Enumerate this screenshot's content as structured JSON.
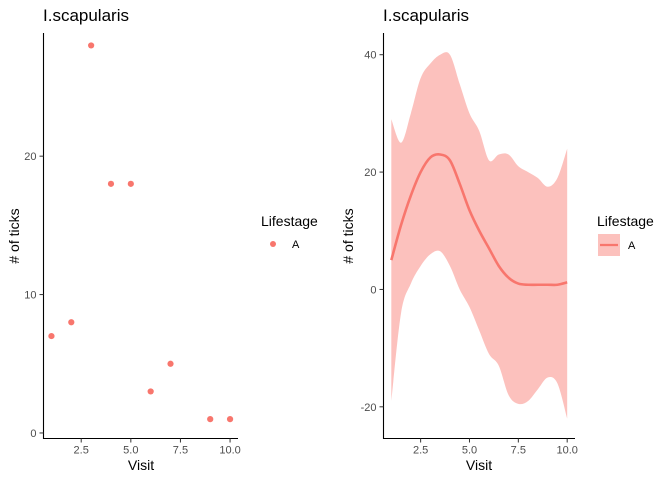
{
  "chart_data": [
    {
      "type": "scatter",
      "title": "I.scapularis",
      "xlabel": "Visit",
      "ylabel": "# of ticks",
      "xlim": [
        0.6,
        10.4
      ],
      "ylim": [
        -0.4,
        28.9
      ],
      "xticks": [
        2.5,
        5.0,
        7.5,
        10.0
      ],
      "xtick_labels": [
        "2.5",
        "5.0",
        "7.5",
        "10.0"
      ],
      "yticks": [
        0,
        10,
        20
      ],
      "ytick_labels": [
        "0",
        "10",
        "20"
      ],
      "grid": false,
      "legend": {
        "title": "Lifestage",
        "position": "right",
        "entries": [
          "A"
        ]
      },
      "series": [
        {
          "name": "A",
          "color": "#F8766D",
          "points": [
            [
              1,
              7
            ],
            [
              2,
              8
            ],
            [
              3,
              28
            ],
            [
              4,
              18
            ],
            [
              5,
              18
            ],
            [
              6,
              3
            ],
            [
              7,
              5
            ],
            [
              9,
              1
            ],
            [
              10,
              1
            ]
          ]
        }
      ]
    },
    {
      "type": "line",
      "title": "I.scapularis",
      "xlabel": "Visit",
      "ylabel": "# of ticks",
      "xlim": [
        0.6,
        10.4
      ],
      "ylim": [
        -25.4,
        43.7
      ],
      "xticks": [
        2.5,
        5.0,
        7.5,
        10.0
      ],
      "xtick_labels": [
        "2.5",
        "5.0",
        "7.5",
        "10.0"
      ],
      "yticks": [
        -20,
        0,
        20,
        40
      ],
      "ytick_labels": [
        "-20",
        "0",
        "20",
        "40"
      ],
      "grid": false,
      "legend": {
        "title": "Lifestage",
        "position": "right",
        "entries": [
          "A"
        ]
      },
      "series": [
        {
          "name": "A",
          "color": "#F8766D",
          "band_color": "#F8766D",
          "x": [
            1.0,
            1.5,
            2.0,
            2.5,
            3.0,
            3.5,
            4.0,
            4.5,
            5.0,
            5.5,
            6.0,
            6.5,
            7.0,
            7.5,
            8.0,
            8.5,
            9.0,
            9.5,
            10.0
          ],
          "y": [
            5,
            11,
            16,
            20,
            22.5,
            23,
            22,
            18,
            13.5,
            10,
            7,
            4,
            2,
            1,
            0.8,
            0.8,
            0.8,
            0.8,
            1.2
          ],
          "upper": [
            29,
            25,
            30,
            36,
            38.5,
            40,
            40,
            35,
            30,
            27,
            22,
            23,
            23,
            21,
            20,
            19,
            17.5,
            19,
            24
          ],
          "lower": [
            -19,
            -4,
            1,
            4,
            6,
            6.5,
            4,
            0,
            -3,
            -7,
            -11,
            -13,
            -18,
            -19.5,
            -19,
            -17,
            -15,
            -16,
            -22
          ]
        }
      ]
    }
  ]
}
